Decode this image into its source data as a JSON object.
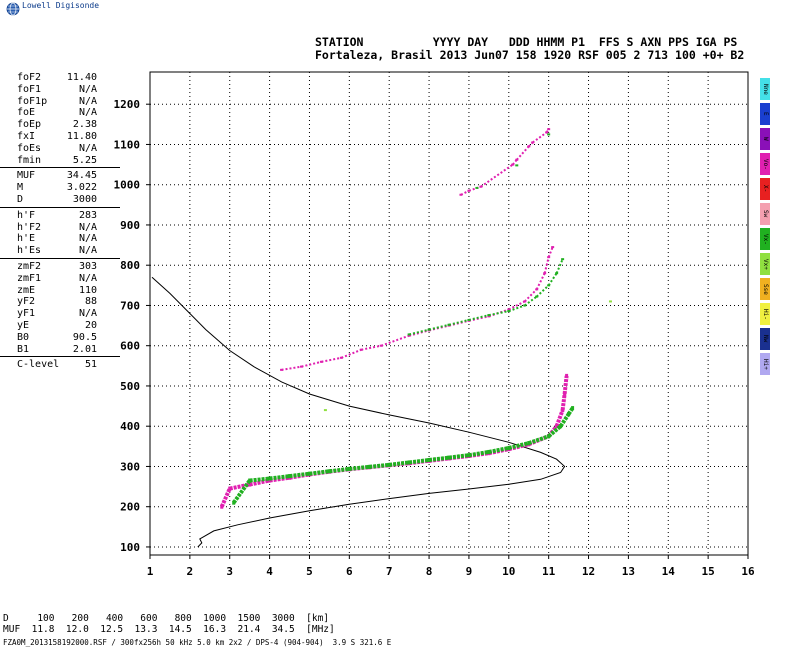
{
  "logo": {
    "text": "Lowell Digisonde"
  },
  "header": {
    "line1": "STATION          YYYY DAY   DDD HHMM P1  FFS S AXN PPS IGA PS",
    "line2": "Fortaleza, Brasil 2013 Jun07 158 1920 RSF 005 2 713 100 +0+ B2"
  },
  "params": {
    "group1": [
      {
        "label": "foF2",
        "value": "11.40"
      },
      {
        "label": "foF1",
        "value": "N/A"
      },
      {
        "label": "foF1p",
        "value": "N/A"
      },
      {
        "label": "foE",
        "value": "N/A"
      },
      {
        "label": "foEp",
        "value": "2.38"
      },
      {
        "label": "fxI",
        "value": "11.80"
      },
      {
        "label": "foEs",
        "value": "N/A"
      },
      {
        "label": "fmin",
        "value": "5.25"
      }
    ],
    "group2": [
      {
        "label": "MUF",
        "value": "34.45"
      },
      {
        "label": "M",
        "value": "3.022"
      },
      {
        "label": "D",
        "value": "3000"
      }
    ],
    "group3": [
      {
        "label": "h'F",
        "value": "283"
      },
      {
        "label": "h'F2",
        "value": "N/A"
      },
      {
        "label": "h'E",
        "value": "N/A"
      },
      {
        "label": "h'Es",
        "value": "N/A"
      }
    ],
    "group4": [
      {
        "label": "zmF2",
        "value": "303"
      },
      {
        "label": "zmF1",
        "value": "N/A"
      },
      {
        "label": "zmE",
        "value": "110"
      },
      {
        "label": "yF2",
        "value": "88"
      },
      {
        "label": "yF1",
        "value": "N/A"
      },
      {
        "label": "yE",
        "value": "20"
      },
      {
        "label": "B0",
        "value": "90.5"
      },
      {
        "label": "B1",
        "value": "2.01"
      }
    ],
    "group5": [
      {
        "label": "C-level",
        "value": "51"
      }
    ]
  },
  "legend": [
    {
      "label": "Nne",
      "color": "#44e0e8"
    },
    {
      "label": "E",
      "color": "#1a3fd0"
    },
    {
      "label": "W",
      "color": "#8a10b8"
    },
    {
      "label": "Vo-",
      "color": "#e020b0"
    },
    {
      "label": "X-",
      "color": "#e82020"
    },
    {
      "label": "Sw",
      "color": "#f4a0b0"
    },
    {
      "label": "Vx-",
      "color": "#20b020"
    },
    {
      "label": "Vx+",
      "color": "#90e040"
    },
    {
      "label": "Sse",
      "color": "#f0b020"
    },
    {
      "label": "Hi-",
      "color": "#f0f040"
    },
    {
      "label": "Nw",
      "color": "#1a3090"
    },
    {
      "label": "Hi+",
      "color": "#b0a8f0"
    }
  ],
  "dtable": {
    "line1": "D     100   200   400   600   800  1000  1500  3000  [km]",
    "line2": "MUF  11.8  12.0  12.5  13.3  14.5  16.3  21.4  34.5  [MHz]"
  },
  "footer": "FZA0M_2013158192000.RSF / 300fx256h 50 kHz 5.0 km 2x2 / DPS-4 (904-904)  3.9 S 321.6 E",
  "chart_data": {
    "type": "scatter",
    "xlim": [
      1,
      16
    ],
    "ylim": [
      80,
      1280
    ],
    "xticks": [
      1,
      2,
      3,
      4,
      5,
      6,
      7,
      8,
      9,
      10,
      11,
      12,
      13,
      14,
      15,
      16
    ],
    "yticks": [
      100,
      200,
      300,
      400,
      500,
      600,
      700,
      800,
      900,
      1000,
      1100,
      1200
    ],
    "grid": true,
    "profile": [
      [
        2.2,
        100
      ],
      [
        2.3,
        110
      ],
      [
        2.25,
        120
      ],
      [
        2.6,
        140
      ],
      [
        3.2,
        155
      ],
      [
        4.0,
        172
      ],
      [
        5.0,
        190
      ],
      [
        6.0,
        206
      ],
      [
        7.0,
        220
      ],
      [
        8.0,
        233
      ],
      [
        9.0,
        244
      ],
      [
        10.0,
        256
      ],
      [
        10.8,
        268
      ],
      [
        11.3,
        285
      ],
      [
        11.4,
        300
      ],
      [
        11.2,
        318
      ],
      [
        10.8,
        335
      ],
      [
        10.0,
        360
      ],
      [
        9.0,
        385
      ],
      [
        8.0,
        408
      ],
      [
        7.0,
        428
      ],
      [
        6.0,
        450
      ],
      [
        5.0,
        480
      ],
      [
        4.3,
        510
      ],
      [
        3.6,
        548
      ],
      [
        3.0,
        588
      ],
      [
        2.4,
        640
      ],
      [
        1.9,
        690
      ],
      [
        1.5,
        730
      ],
      [
        1.05,
        770
      ]
    ],
    "series": [
      {
        "mode": "o-trace",
        "color": "#e020b0",
        "points": [
          [
            2.8,
            200
          ],
          [
            3.0,
            245
          ],
          [
            3.5,
            255
          ],
          [
            4.0,
            265
          ],
          [
            4.5,
            272
          ],
          [
            5.0,
            280
          ],
          [
            5.5,
            287
          ],
          [
            6.0,
            293
          ],
          [
            6.5,
            298
          ],
          [
            7.0,
            303
          ],
          [
            7.5,
            308
          ],
          [
            8.0,
            314
          ],
          [
            8.5,
            320
          ],
          [
            9.0,
            326
          ],
          [
            9.5,
            333
          ],
          [
            10.0,
            343
          ],
          [
            10.5,
            355
          ],
          [
            11.0,
            375
          ],
          [
            11.2,
            400
          ],
          [
            11.35,
            440
          ],
          [
            11.4,
            480
          ],
          [
            11.45,
            525
          ]
        ]
      },
      {
        "mode": "x-trace",
        "color": "#20b020",
        "points": [
          [
            3.1,
            210
          ],
          [
            3.5,
            265
          ],
          [
            4.0,
            270
          ],
          [
            4.5,
            276
          ],
          [
            5.0,
            282
          ],
          [
            5.5,
            288
          ],
          [
            6.0,
            294
          ],
          [
            6.5,
            299
          ],
          [
            7.0,
            304
          ],
          [
            7.5,
            310
          ],
          [
            8.0,
            316
          ],
          [
            8.5,
            322
          ],
          [
            9.0,
            328
          ],
          [
            9.5,
            336
          ],
          [
            10.0,
            346
          ],
          [
            10.5,
            358
          ],
          [
            11.0,
            375
          ],
          [
            11.3,
            400
          ],
          [
            11.5,
            430
          ],
          [
            11.6,
            445
          ]
        ]
      },
      {
        "mode": "o-second-hop",
        "color": "#e020b0",
        "points": [
          [
            4.3,
            540
          ],
          [
            4.8,
            548
          ],
          [
            5.3,
            560
          ],
          [
            5.8,
            570
          ],
          [
            6.3,
            590
          ],
          [
            6.8,
            600
          ],
          [
            7.5,
            625
          ],
          [
            8.0,
            638
          ],
          [
            8.5,
            650
          ],
          [
            9.0,
            662
          ],
          [
            9.5,
            673
          ],
          [
            10.0,
            690
          ],
          [
            10.4,
            710
          ],
          [
            10.7,
            740
          ],
          [
            10.9,
            780
          ],
          [
            11.0,
            820
          ],
          [
            11.1,
            845
          ]
        ]
      },
      {
        "mode": "x-second-hop",
        "color": "#20b020",
        "points": [
          [
            7.5,
            628
          ],
          [
            8.0,
            640
          ],
          [
            8.5,
            652
          ],
          [
            9.0,
            664
          ],
          [
            9.5,
            676
          ],
          [
            10.0,
            686
          ],
          [
            10.4,
            700
          ],
          [
            10.7,
            722
          ],
          [
            11.0,
            750
          ],
          [
            11.2,
            780
          ],
          [
            11.35,
            815
          ]
        ]
      },
      {
        "mode": "o-third-hop",
        "color": "#e020b0",
        "points": [
          [
            8.8,
            975
          ],
          [
            9.0,
            985
          ],
          [
            9.3,
            995
          ],
          [
            10.1,
            1050
          ],
          [
            10.2,
            1062
          ],
          [
            10.5,
            1095
          ],
          [
            10.6,
            1105
          ],
          [
            10.95,
            1130
          ],
          [
            11.0,
            1138
          ]
        ]
      },
      {
        "mode": "x-third-hop",
        "color": "#20b020",
        "points": [
          [
            9.2,
            992
          ],
          [
            10.2,
            1048
          ],
          [
            11.0,
            1125
          ]
        ]
      },
      {
        "mode": "stray",
        "color": "#90e040",
        "points": [
          [
            5.4,
            440
          ],
          [
            12.55,
            710
          ]
        ]
      }
    ]
  }
}
